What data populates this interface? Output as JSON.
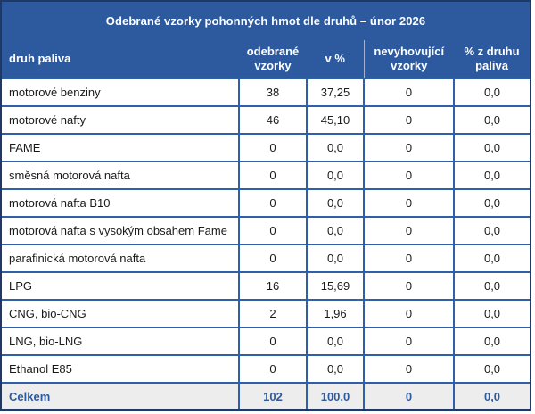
{
  "title": "Odebrané vzorky pohonných hmot dle druhů – únor 2026",
  "colors": {
    "band_bg": "#2d5a9e",
    "cell_border": "#2e5fa8",
    "outer_border": "#1f3864",
    "header_text": "#ffffff",
    "body_text": "#1a1a1a",
    "total_bg": "#ededed",
    "total_text": "#2e5b9e",
    "header_divider": "#9fb4d4"
  },
  "table": {
    "columns": [
      "druh paliva",
      "odebrané vzorky",
      "v %",
      "nevyhovující vzorky",
      "% z druhu paliva"
    ],
    "rows": [
      {
        "fuel": "motorové benziny",
        "samples": "38",
        "pct": "37,25",
        "noncompliant": "0",
        "pct_of_type": "0,0"
      },
      {
        "fuel": "motorové nafty",
        "samples": "46",
        "pct": "45,10",
        "noncompliant": "0",
        "pct_of_type": "0,0"
      },
      {
        "fuel": "FAME",
        "samples": "0",
        "pct": "0,0",
        "noncompliant": "0",
        "pct_of_type": "0,0"
      },
      {
        "fuel": "směsná motorová nafta",
        "samples": "0",
        "pct": "0,0",
        "noncompliant": "0",
        "pct_of_type": "0,0"
      },
      {
        "fuel": "motorová nafta B10",
        "samples": "0",
        "pct": "0,0",
        "noncompliant": "0",
        "pct_of_type": "0,0"
      },
      {
        "fuel": "motorová nafta s vysokým obsahem Fame",
        "samples": "0",
        "pct": "0,0",
        "noncompliant": "0",
        "pct_of_type": "0,0"
      },
      {
        "fuel": "parafinická motorová nafta",
        "samples": "0",
        "pct": "0,0",
        "noncompliant": "0",
        "pct_of_type": "0,0"
      },
      {
        "fuel": "LPG",
        "samples": "16",
        "pct": "15,69",
        "noncompliant": "0",
        "pct_of_type": "0,0"
      },
      {
        "fuel": "CNG, bio-CNG",
        "samples": "2",
        "pct": "1,96",
        "noncompliant": "0",
        "pct_of_type": "0,0"
      },
      {
        "fuel": "LNG, bio-LNG",
        "samples": "0",
        "pct": "0,0",
        "noncompliant": "0",
        "pct_of_type": "0,0"
      },
      {
        "fuel": "Ethanol E85",
        "samples": "0",
        "pct": "0,0",
        "noncompliant": "0",
        "pct_of_type": "0,0"
      }
    ],
    "total": {
      "fuel": "Celkem",
      "samples": "102",
      "pct": "100,0",
      "noncompliant": "0",
      "pct_of_type": "0,0"
    }
  }
}
